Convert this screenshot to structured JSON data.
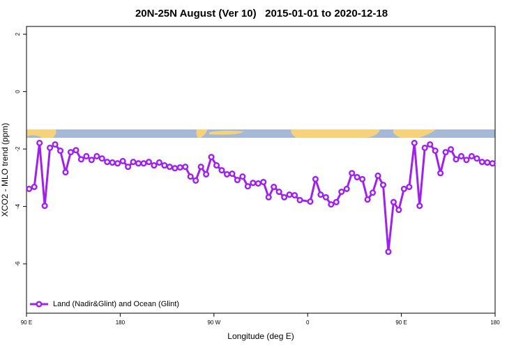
{
  "chart_data": {
    "type": "line",
    "title": "20N-25N August (Ver 10)   2015-01-01 to 2020-12-18",
    "xlabel": "Longitude (deg E)",
    "ylabel": "XCO2 - MLO trend (ppm)",
    "x": [
      92.5,
      97.5,
      102.5,
      107.5,
      112.5,
      117.5,
      122.5,
      127.5,
      132.5,
      137.5,
      142.5,
      147.5,
      152.5,
      157.5,
      162.5,
      167.5,
      172.5,
      177.5,
      182.5,
      187.5,
      192.5,
      197.5,
      202.5,
      207.5,
      212.5,
      217.5,
      222.5,
      227.5,
      232.5,
      237.5,
      242.5,
      247.5,
      252.5,
      257.5,
      262.5,
      267.5,
      272.5,
      277.5,
      282.5,
      287.5,
      292.5,
      297.5,
      302.5,
      307.5,
      312.5,
      317.5,
      322.5,
      327.5,
      332.5,
      337.5,
      342.5,
      347.5,
      352.5,
      362.5,
      367.5,
      372.5,
      377.5,
      382.5,
      387.5,
      392.5,
      397.5,
      402.5,
      407.5,
      412.5,
      417.5,
      422.5,
      427.5,
      432.5,
      437.5,
      442.5,
      447.5,
      452.5,
      457.5,
      462.5,
      467.5,
      472.5,
      477.5,
      482.5,
      487.5,
      492.5,
      497.5,
      502.5,
      507.5,
      512.5,
      517.5,
      522.5,
      527.5,
      532.5,
      537.5
    ],
    "series": [
      {
        "name": "Land (Nadir&Glint) and Ocean (Glint)",
        "color": "#a020f0",
        "values": [
          -3.39,
          -3.32,
          -1.79,
          -3.98,
          -1.96,
          -1.84,
          -2.06,
          -2.81,
          -2.11,
          -2.04,
          -2.36,
          -2.25,
          -2.38,
          -2.25,
          -2.33,
          -2.45,
          -2.47,
          -2.5,
          -2.42,
          -2.62,
          -2.45,
          -2.5,
          -2.5,
          -2.45,
          -2.57,
          -2.47,
          -2.57,
          -2.62,
          -2.67,
          -2.64,
          -2.62,
          -2.96,
          -3.1,
          -2.62,
          -2.88,
          -2.28,
          -2.57,
          -2.74,
          -2.88,
          -2.86,
          -3.08,
          -2.96,
          -3.3,
          -3.18,
          -3.2,
          -3.15,
          -3.68,
          -3.32,
          -3.49,
          -3.68,
          -3.59,
          -3.61,
          -3.78,
          -3.83,
          -3.05,
          -3.59,
          -3.68,
          -3.93,
          -3.85,
          -3.49,
          -3.39,
          -2.84,
          -2.98,
          -3.05,
          -3.76,
          -3.52,
          -2.93,
          -3.25,
          -5.58,
          -3.85,
          -4.12,
          -3.39,
          -3.32,
          -1.79,
          -3.98,
          -1.96,
          -1.84,
          -2.06,
          -2.84,
          -2.11,
          -2.01,
          -2.36,
          -2.25,
          -2.38,
          -2.25,
          -2.33,
          -2.45,
          -2.47,
          -2.5
        ]
      }
    ],
    "xlim": [
      90,
      540
    ],
    "xticks": [
      {
        "value": 90,
        "label": "90 E"
      },
      180,
      {
        "value": 270,
        "label": "90 W"
      },
      {
        "value": 360,
        "label": "0"
      },
      {
        "value": 450,
        "label": "90 E"
      },
      {
        "value": 540,
        "label": "180"
      }
    ],
    "ylim": [
      -7.72,
      2.27
    ],
    "yticks": [
      2,
      0,
      -2,
      -4,
      -6
    ],
    "legend": "bottom-left"
  }
}
